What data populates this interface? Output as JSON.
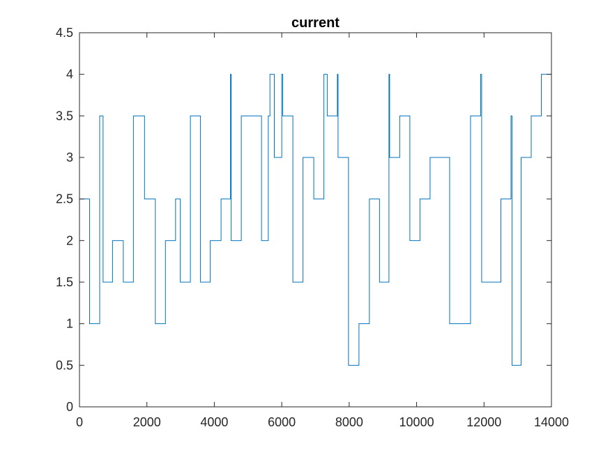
{
  "chart_data": {
    "type": "line",
    "title": "current",
    "xlabel": "",
    "ylabel": "",
    "xlim": [
      0,
      14000
    ],
    "ylim": [
      0,
      4.5
    ],
    "xticks": [
      "0",
      "2000",
      "4000",
      "6000",
      "8000",
      "10000",
      "12000",
      "14000"
    ],
    "yticks": [
      "0",
      "0.5",
      "1",
      "1.5",
      "2",
      "2.5",
      "3",
      "3.5",
      "4",
      "4.5"
    ],
    "grid": false,
    "legend": "none",
    "line_color": "#0072BD",
    "step_levels": [
      {
        "x": 0,
        "y": 2.5
      },
      {
        "x": 300,
        "y": 1
      },
      {
        "x": 600,
        "y": 3.5
      },
      {
        "x": 700,
        "y": 1.5
      },
      {
        "x": 980,
        "y": 2
      },
      {
        "x": 1300,
        "y": 1.5
      },
      {
        "x": 1600,
        "y": 3.5
      },
      {
        "x": 1930,
        "y": 2.5
      },
      {
        "x": 2250,
        "y": 1
      },
      {
        "x": 2550,
        "y": 2
      },
      {
        "x": 2850,
        "y": 2.5
      },
      {
        "x": 2990,
        "y": 1.5
      },
      {
        "x": 3290,
        "y": 3.5
      },
      {
        "x": 3590,
        "y": 1.5
      },
      {
        "x": 3880,
        "y": 2
      },
      {
        "x": 4200,
        "y": 2.5
      },
      {
        "x": 4480,
        "y": 4
      },
      {
        "x": 4500,
        "y": 2
      },
      {
        "x": 4800,
        "y": 3.5
      },
      {
        "x": 5120,
        "y": 3.5
      },
      {
        "x": 5400,
        "y": 2
      },
      {
        "x": 5600,
        "y": 3.5
      },
      {
        "x": 5650,
        "y": 4
      },
      {
        "x": 5780,
        "y": 3
      },
      {
        "x": 6000,
        "y": 4
      },
      {
        "x": 6030,
        "y": 3.5
      },
      {
        "x": 6330,
        "y": 1.5
      },
      {
        "x": 6630,
        "y": 3
      },
      {
        "x": 6950,
        "y": 2.5
      },
      {
        "x": 7250,
        "y": 4
      },
      {
        "x": 7350,
        "y": 3.5
      },
      {
        "x": 7650,
        "y": 4
      },
      {
        "x": 7670,
        "y": 3
      },
      {
        "x": 7980,
        "y": 0.5
      },
      {
        "x": 8290,
        "y": 1
      },
      {
        "x": 8600,
        "y": 2.5
      },
      {
        "x": 8900,
        "y": 1.5
      },
      {
        "x": 9180,
        "y": 4
      },
      {
        "x": 9200,
        "y": 3
      },
      {
        "x": 9500,
        "y": 3.5
      },
      {
        "x": 9800,
        "y": 2
      },
      {
        "x": 10100,
        "y": 2.5
      },
      {
        "x": 10400,
        "y": 3
      },
      {
        "x": 10700,
        "y": 3
      },
      {
        "x": 10980,
        "y": 1
      },
      {
        "x": 11300,
        "y": 1
      },
      {
        "x": 11600,
        "y": 3.5
      },
      {
        "x": 11900,
        "y": 4
      },
      {
        "x": 11930,
        "y": 1.5
      },
      {
        "x": 12200,
        "y": 1.5
      },
      {
        "x": 12500,
        "y": 2.5
      },
      {
        "x": 12800,
        "y": 3.5
      },
      {
        "x": 12830,
        "y": 0.5
      },
      {
        "x": 13100,
        "y": 3
      },
      {
        "x": 13400,
        "y": 3.5
      },
      {
        "x": 13700,
        "y": 4
      },
      {
        "x": 13900,
        "y": 4
      },
      {
        "x": 14000,
        "y": 4
      }
    ]
  }
}
